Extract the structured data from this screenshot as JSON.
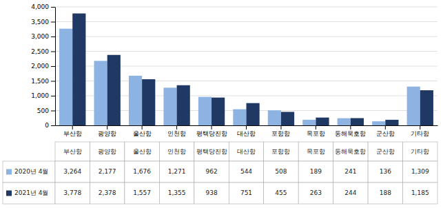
{
  "chart_data": {
    "type": "bar",
    "categories": [
      "부산항",
      "광양항",
      "울산항",
      "인천항",
      "평택당진항",
      "대산항",
      "포항항",
      "목포항",
      "동해묵호항",
      "군산항",
      "기타항"
    ],
    "series": [
      {
        "name": "2020년 4월",
        "color": "#8db3e2",
        "values": [
          3264,
          2177,
          1676,
          1271,
          962,
          544,
          508,
          189,
          241,
          136,
          1309
        ],
        "value_labels": [
          "3,264",
          "2,177",
          "1,676",
          "1,271",
          "962",
          "544",
          "508",
          "189",
          "241",
          "136",
          "1,309"
        ]
      },
      {
        "name": "2021년 4월",
        "color": "#1f3864",
        "values": [
          3778,
          2378,
          1557,
          1355,
          938,
          751,
          455,
          263,
          244,
          188,
          1185
        ],
        "value_labels": [
          "3,778",
          "2,378",
          "1,557",
          "1,355",
          "938",
          "751",
          "455",
          "263",
          "244",
          "188",
          "1,185"
        ]
      }
    ],
    "ylim": [
      0,
      4000
    ],
    "yticks": [
      0,
      500,
      {
        "value": 1000,
        "label": "1,000"
      },
      {
        "value": 1500,
        "label": "1,500"
      },
      {
        "value": 2000,
        "label": "2,000"
      },
      {
        "value": 2500,
        "label": "2,500"
      },
      {
        "value": 3000,
        "label": "3,000"
      },
      {
        "value": 3500,
        "label": "3,500"
      },
      {
        "value": 4000,
        "label": "4,000"
      }
    ],
    "grid": true
  }
}
